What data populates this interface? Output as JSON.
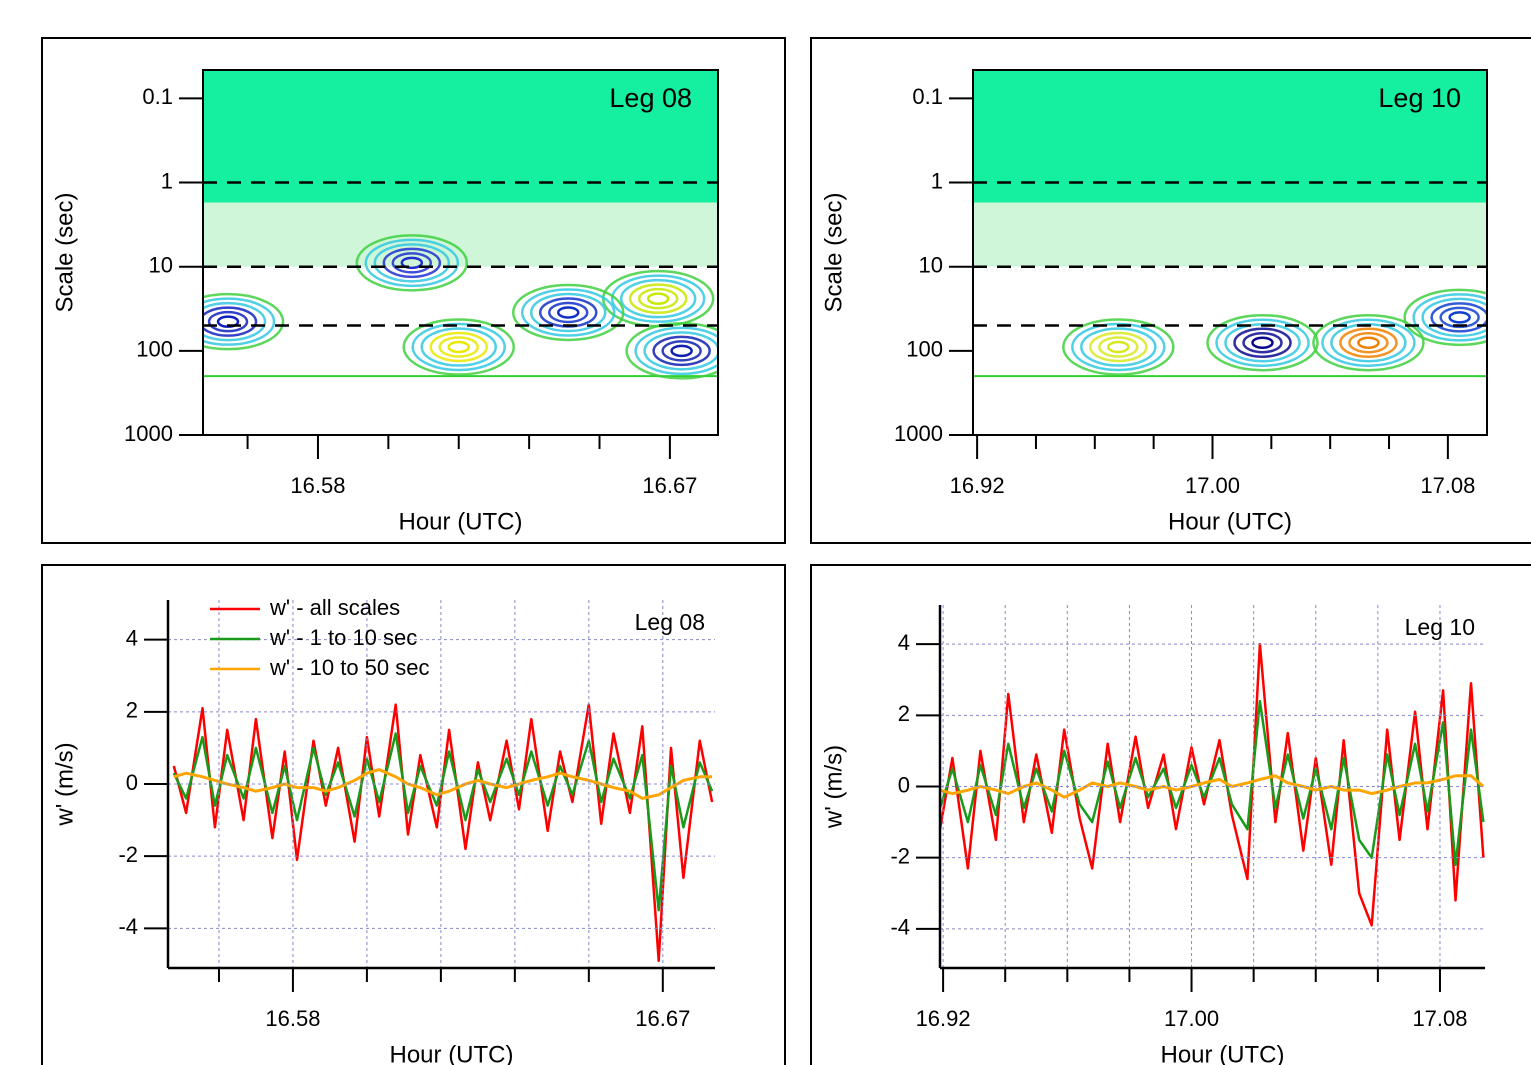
{
  "chart_data": [
    {
      "type": "contour",
      "annotation": "Leg 08",
      "xlabel": "Hour (UTC)",
      "ylabel": "Scale (sec)",
      "xlim": [
        16.5506,
        16.6823
      ],
      "ylim": [
        1000,
        0.046
      ],
      "log_y": true,
      "xticks": [
        16.58,
        16.67
      ],
      "xminorticks": [
        16.562,
        16.598,
        16.616,
        16.634,
        16.652
      ],
      "yticks": [
        0.1,
        1,
        10,
        100,
        1000
      ],
      "hlines": [
        1,
        10,
        50
      ],
      "features": [
        {
          "x": 16.616,
          "y": 90,
          "color": "#e8e800"
        },
        {
          "x": 16.667,
          "y": 24,
          "color": "#c8e800"
        },
        {
          "x": 16.557,
          "y": 45,
          "color": "#1020c0"
        },
        {
          "x": 16.644,
          "y": 35,
          "color": "#1030c8"
        },
        {
          "x": 16.673,
          "y": 100,
          "color": "#1020b0"
        },
        {
          "x": 16.604,
          "y": 9,
          "color": "#2030d0"
        }
      ]
    },
    {
      "type": "contour",
      "annotation": "Leg 10",
      "xlabel": "Hour (UTC)",
      "ylabel": "Scale (sec)",
      "xlim": [
        16.9186,
        17.0933
      ],
      "ylim": [
        1000,
        0.046
      ],
      "log_y": true,
      "xticks": [
        16.92,
        {
          "value": 17,
          "label": "17.00"
        },
        17.08
      ],
      "xminorticks": [
        16.94,
        16.96,
        16.98,
        17.02,
        17.04,
        17.06
      ],
      "yticks": [
        0.1,
        1,
        10,
        100,
        1000
      ],
      "hlines": [
        1,
        10,
        50
      ],
      "features": [
        {
          "x": 17.017,
          "y": 80,
          "color": "#0a0a90"
        },
        {
          "x": 17.053,
          "y": 80,
          "color": "#f08000"
        },
        {
          "x": 16.968,
          "y": 90,
          "color": "#d8e820"
        },
        {
          "x": 17.084,
          "y": 40,
          "color": "#1040d0"
        }
      ]
    },
    {
      "type": "line",
      "annotation": "Leg 08",
      "xlabel": "Hour (UTC)",
      "ylabel": "w' (m/s)",
      "xlim": [
        16.5496,
        16.6827
      ],
      "ylim": [
        -5.1,
        5.1
      ],
      "grid": true,
      "legend": "upper left",
      "xticks": [
        16.58,
        16.67
      ],
      "xminorticks": [
        16.562,
        16.598,
        16.616,
        16.634,
        16.652
      ],
      "yticks": [
        -4,
        -2,
        0,
        2,
        4
      ],
      "x": [
        16.551,
        16.554,
        16.558,
        16.561,
        16.564,
        16.568,
        16.571,
        16.575,
        16.578,
        16.581,
        16.585,
        16.588,
        16.591,
        16.595,
        16.598,
        16.601,
        16.605,
        16.608,
        16.611,
        16.615,
        16.618,
        16.622,
        16.625,
        16.628,
        16.632,
        16.635,
        16.638,
        16.642,
        16.645,
        16.648,
        16.652,
        16.655,
        16.658,
        16.662,
        16.665,
        16.669,
        16.672,
        16.675,
        16.679,
        16.682
      ],
      "series": [
        {
          "name": "w' - all scales",
          "color": "#ff0000",
          "values": [
            0.5,
            -0.8,
            2.1,
            -1.2,
            1.5,
            -1.0,
            1.8,
            -1.5,
            0.9,
            -2.1,
            1.2,
            -0.6,
            1.0,
            -1.6,
            1.3,
            -0.9,
            2.2,
            -1.4,
            0.8,
            -1.2,
            1.5,
            -1.8,
            0.6,
            -1.0,
            1.2,
            -0.7,
            1.8,
            -1.3,
            0.9,
            -0.5,
            2.2,
            -1.1,
            1.4,
            -0.8,
            1.6,
            -4.9,
            1.0,
            -2.6,
            1.2,
            -0.5
          ]
        },
        {
          "name": "w' - 1 to 10 sec",
          "color": "#1a9a1a",
          "values": [
            0.3,
            -0.4,
            1.3,
            -0.6,
            0.8,
            -0.4,
            1.0,
            -0.8,
            0.5,
            -1.0,
            1.0,
            -0.3,
            0.6,
            -0.9,
            0.7,
            -0.5,
            1.4,
            -0.8,
            0.5,
            -0.6,
            0.9,
            -1.0,
            0.4,
            -0.5,
            0.7,
            -0.3,
            0.9,
            -0.6,
            0.5,
            -0.3,
            1.2,
            -0.5,
            0.7,
            -0.4,
            0.8,
            -3.5,
            0.5,
            -1.2,
            0.6,
            -0.2
          ]
        },
        {
          "name": "w' - 10 to 50 sec",
          "color": "#ffa500",
          "values": [
            0.2,
            0.3,
            0.2,
            0.1,
            0.0,
            -0.1,
            -0.2,
            -0.1,
            0.0,
            -0.1,
            -0.1,
            -0.2,
            -0.1,
            0.1,
            0.3,
            0.4,
            0.2,
            0.0,
            -0.1,
            -0.3,
            -0.2,
            0.0,
            0.1,
            0.0,
            -0.1,
            0.0,
            0.1,
            0.2,
            0.3,
            0.2,
            0.1,
            0.0,
            -0.1,
            -0.2,
            -0.4,
            -0.3,
            -0.1,
            0.1,
            0.2,
            0.2
          ]
        }
      ]
    },
    {
      "type": "line",
      "annotation": "Leg 10",
      "xlabel": "Hour (UTC)",
      "ylabel": "w' (m/s)",
      "xlim": [
        16.919,
        17.0945
      ],
      "ylim": [
        -5.1,
        5.1
      ],
      "grid": true,
      "xticks": [
        16.92,
        {
          "value": 17,
          "label": "17.00"
        },
        17.08
      ],
      "xminorticks": [
        16.94,
        16.96,
        16.98,
        17.02,
        17.04,
        17.06
      ],
      "yticks": [
        -4,
        -2,
        0,
        2,
        4
      ],
      "x": [
        16.919,
        16.923,
        16.928,
        16.932,
        16.937,
        16.941,
        16.946,
        16.95,
        16.955,
        16.959,
        16.964,
        16.968,
        16.973,
        16.977,
        16.982,
        16.986,
        16.991,
        16.995,
        17.0,
        17.004,
        17.009,
        17.013,
        17.018,
        17.022,
        17.027,
        17.031,
        17.036,
        17.04,
        17.045,
        17.049,
        17.054,
        17.058,
        17.063,
        17.067,
        17.072,
        17.076,
        17.081,
        17.085,
        17.09,
        17.094
      ],
      "series": [
        {
          "color": "#ff0000",
          "values": [
            -1.2,
            0.8,
            -2.3,
            1.0,
            -1.5,
            2.6,
            -1.0,
            0.9,
            -1.3,
            1.6,
            -0.9,
            -2.3,
            1.2,
            -1.0,
            1.4,
            -0.6,
            0.9,
            -1.2,
            1.1,
            -0.5,
            1.3,
            -0.8,
            -2.6,
            4.0,
            -1.0,
            1.5,
            -1.8,
            0.8,
            -2.2,
            1.3,
            -3.0,
            -3.9,
            1.6,
            -1.5,
            2.1,
            -1.2,
            2.7,
            -3.2,
            2.9,
            -2.0
          ]
        },
        {
          "color": "#1a9a1a",
          "values": [
            -0.6,
            0.5,
            -1.0,
            0.6,
            -0.8,
            1.2,
            -0.6,
            0.5,
            -0.7,
            1.0,
            -0.5,
            -1.0,
            0.7,
            -0.6,
            0.8,
            -0.3,
            0.5,
            -0.6,
            0.6,
            -0.3,
            0.8,
            -0.5,
            -1.2,
            2.4,
            -0.6,
            0.9,
            -0.9,
            0.5,
            -1.2,
            0.8,
            -1.5,
            -2.0,
            0.9,
            -0.8,
            1.2,
            -0.7,
            1.8,
            -2.2,
            1.6,
            -1.0
          ]
        },
        {
          "color": "#ffa500",
          "values": [
            -0.1,
            -0.2,
            -0.1,
            0.0,
            -0.1,
            -0.2,
            0.0,
            0.1,
            -0.1,
            -0.3,
            -0.1,
            0.1,
            0.0,
            0.1,
            0.0,
            -0.1,
            0.0,
            -0.1,
            0.0,
            0.1,
            0.2,
            0.0,
            0.1,
            0.2,
            0.3,
            0.1,
            0.0,
            -0.1,
            0.0,
            -0.1,
            -0.1,
            -0.2,
            -0.1,
            0.0,
            0.1,
            0.1,
            0.2,
            0.3,
            0.3,
            0.0
          ]
        }
      ]
    }
  ]
}
